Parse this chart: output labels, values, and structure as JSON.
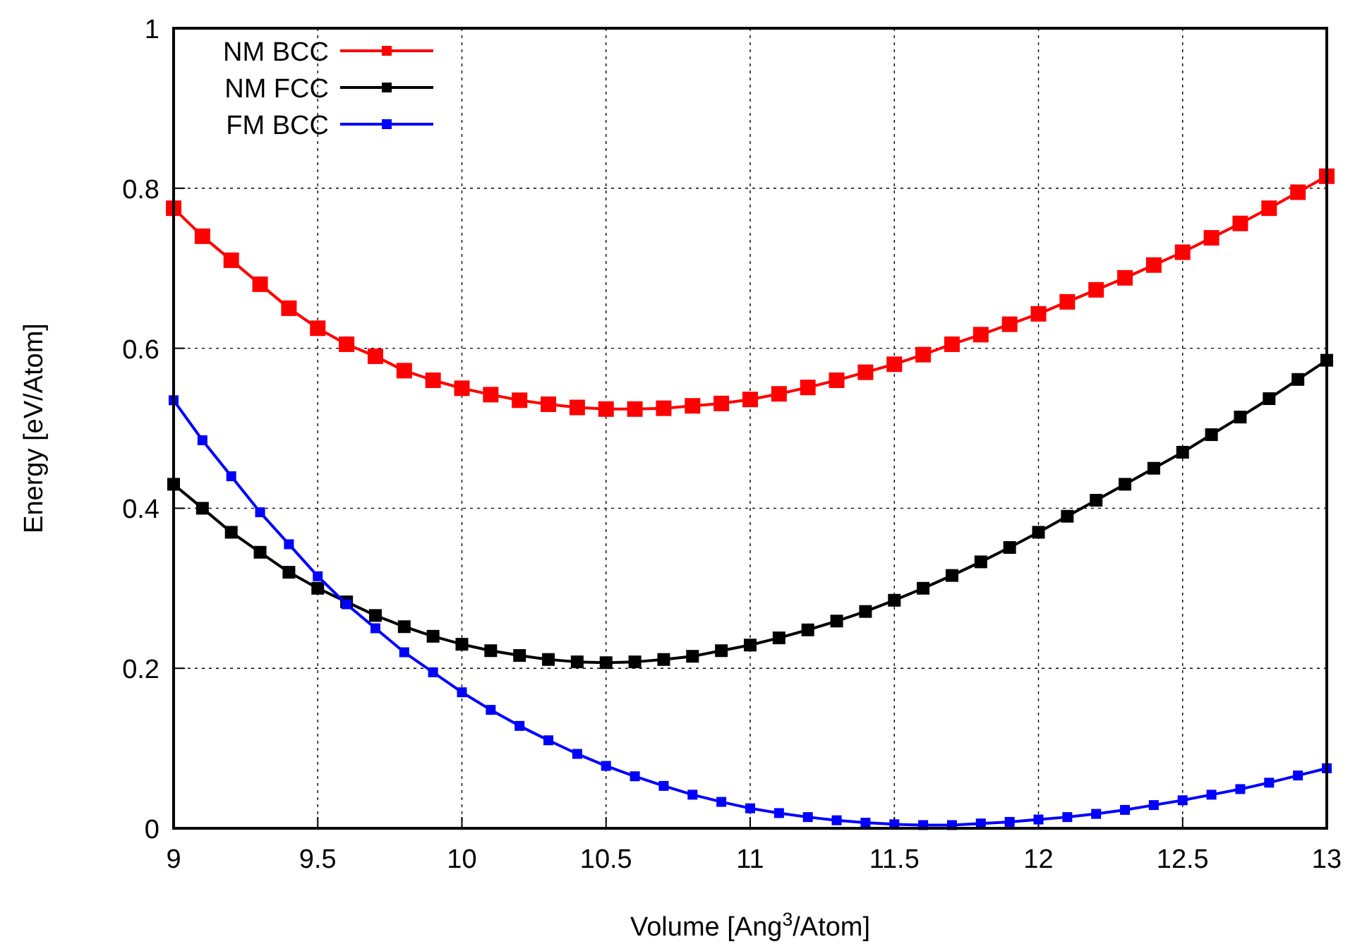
{
  "chart_data": {
    "type": "line",
    "xlabel": "Volume [Ang$^{3}$/Atom]",
    "ylabel": "Energy [eV/Atom]",
    "x": [
      9.0,
      9.1,
      9.2,
      9.3,
      9.4,
      9.5,
      9.6,
      9.7,
      9.8,
      9.9,
      10.0,
      10.1,
      10.2,
      10.3,
      10.4,
      10.5,
      10.6,
      10.7,
      10.8,
      10.9,
      11.0,
      11.1,
      11.2,
      11.3,
      11.4,
      11.5,
      11.6,
      11.7,
      11.8,
      11.9,
      12.0,
      12.1,
      12.2,
      12.3,
      12.4,
      12.5,
      12.6,
      12.7,
      12.8,
      12.9,
      13.0
    ],
    "series": [
      {
        "name": "NM BCC",
        "color": "#ff0000",
        "values": [
          0.775,
          0.74,
          0.71,
          0.68,
          0.65,
          0.625,
          0.605,
          0.59,
          0.572,
          0.56,
          0.55,
          0.542,
          0.535,
          0.53,
          0.526,
          0.524,
          0.524,
          0.525,
          0.528,
          0.531,
          0.536,
          0.543,
          0.551,
          0.56,
          0.57,
          0.58,
          0.592,
          0.605,
          0.617,
          0.63,
          0.643,
          0.658,
          0.673,
          0.688,
          0.704,
          0.72,
          0.738,
          0.756,
          0.775,
          0.795,
          0.815
        ]
      },
      {
        "name": "NM FCC",
        "color": "#000000",
        "values": [
          0.43,
          0.4,
          0.37,
          0.345,
          0.32,
          0.3,
          0.283,
          0.266,
          0.252,
          0.24,
          0.23,
          0.222,
          0.216,
          0.211,
          0.208,
          0.207,
          0.208,
          0.211,
          0.215,
          0.222,
          0.229,
          0.238,
          0.248,
          0.259,
          0.271,
          0.285,
          0.3,
          0.316,
          0.333,
          0.351,
          0.37,
          0.39,
          0.41,
          0.43,
          0.45,
          0.47,
          0.492,
          0.514,
          0.537,
          0.561,
          0.585
        ]
      },
      {
        "name": "FM BCC",
        "color": "#0000ff",
        "values": [
          0.535,
          0.485,
          0.44,
          0.395,
          0.355,
          0.315,
          0.28,
          0.25,
          0.22,
          0.195,
          0.17,
          0.148,
          0.128,
          0.11,
          0.093,
          0.078,
          0.065,
          0.053,
          0.042,
          0.033,
          0.025,
          0.019,
          0.014,
          0.01,
          0.007,
          0.005,
          0.004,
          0.004,
          0.006,
          0.008,
          0.011,
          0.014,
          0.018,
          0.023,
          0.029,
          0.035,
          0.042,
          0.049,
          0.057,
          0.066,
          0.075
        ]
      }
    ],
    "xlim": [
      9,
      13
    ],
    "ylim": [
      0,
      1
    ],
    "xticks": [
      9,
      9.5,
      10,
      10.5,
      11,
      11.5,
      12,
      12.5,
      13
    ],
    "yticks": [
      0,
      0.2,
      0.4,
      0.6,
      0.8,
      1
    ],
    "grid": true,
    "legend": "top left",
    "marker": "square",
    "line_style": "solid"
  }
}
